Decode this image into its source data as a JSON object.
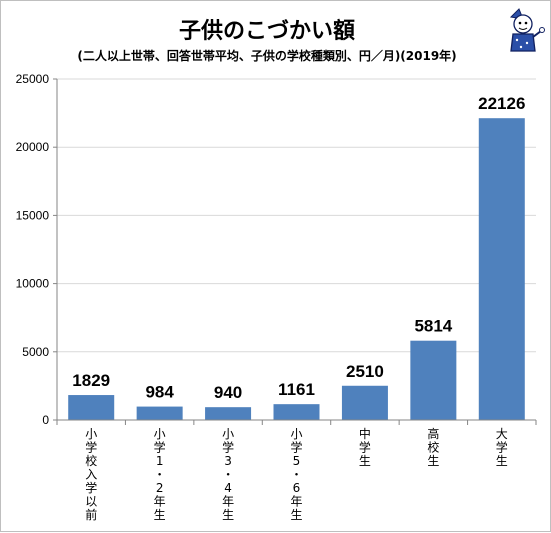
{
  "chart_data": {
    "type": "bar",
    "title": "子供のこづかい額",
    "subtitle": "(二人以上世帯、回答世帯平均、子供の学校種類別、円／月)(2019年)",
    "xlabel": "",
    "ylabel": "",
    "categories": [
      "小学校入学以前",
      "小学1・2年生",
      "小学3・4年生",
      "小学5・6年生",
      "中学生",
      "高校生",
      "大学生"
    ],
    "values": [
      1829,
      984,
      940,
      1161,
      2510,
      5814,
      22126
    ],
    "data_labels": [
      "1829",
      "984",
      "940",
      "1161",
      "2510",
      "5814",
      "22126"
    ],
    "ylim": [
      0,
      25000
    ],
    "yticks": [
      0,
      5000,
      10000,
      15000,
      20000,
      25000
    ],
    "ytick_labels": [
      "0",
      "5000",
      "10000",
      "15000",
      "20000",
      "25000"
    ],
    "grid": true,
    "legend": "none",
    "bar_color": "#4f81bd"
  },
  "mascot": {
    "icon": "mascot-character-icon"
  }
}
